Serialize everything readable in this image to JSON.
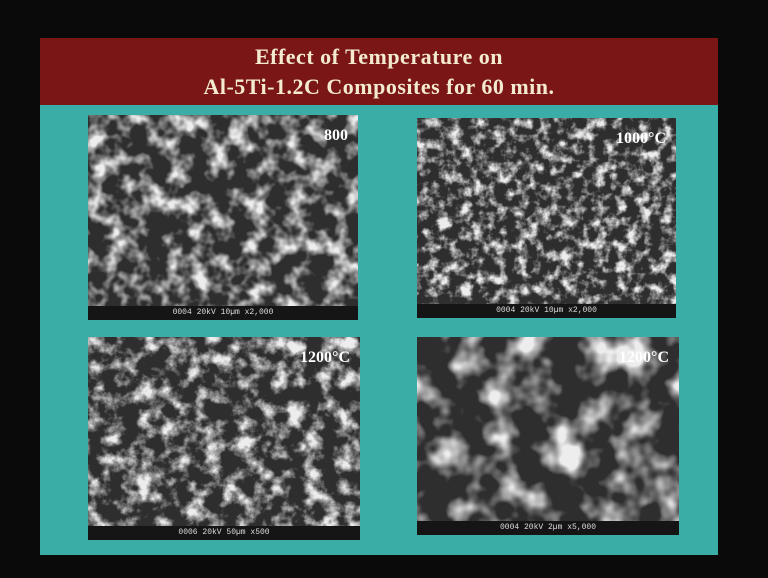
{
  "header": {
    "title_lines": [
      "Effect of Temperature on",
      "Al-5Ti-1.2C Composites for 60 min."
    ]
  },
  "images": [
    {
      "label": "800",
      "info": "0004 20kV 10µm x2,000"
    },
    {
      "label": "1000°C",
      "info": "0004 20kV 10µm x2,000"
    },
    {
      "label": "1200°C",
      "info": "0006 20kV 50µm x500"
    },
    {
      "label": "1200°C",
      "info": "0004 20kV 2µm x5,000"
    }
  ]
}
